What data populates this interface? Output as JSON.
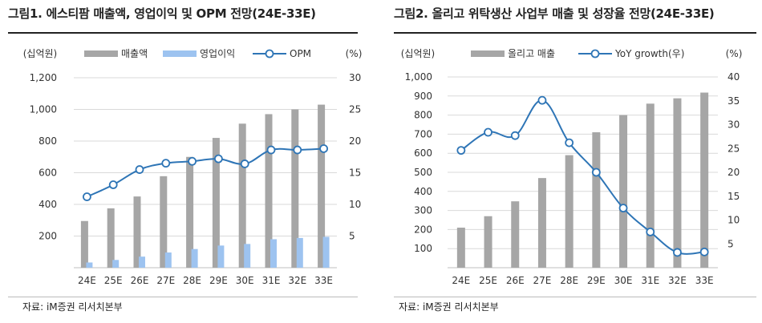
{
  "figures": [
    {
      "title": "그림1. 에스티팜 매출액, 영업이익 및 OPM 전망(24E-33E)",
      "source": "자료: iM증권 리서치본부"
    },
    {
      "title": "그림2.  올리고 위탁생산 사업부 매출 및 성장율 전망(24E-33E)",
      "source": "자료: iM증권 리서치본부"
    }
  ],
  "colors": {
    "bar_gray": "#a6a6a6",
    "bar_blue": "#9dc3f0",
    "line_blue": "#2e75b6"
  },
  "chart_data": [
    {
      "type": "bar",
      "title": "",
      "left_unit": "(십억원)",
      "right_unit": "(%)",
      "categories": [
        "24E",
        "25E",
        "26E",
        "27E",
        "28E",
        "29E",
        "30E",
        "31E",
        "32E",
        "33E"
      ],
      "series": [
        {
          "name": "매출액",
          "type": "bar",
          "axis": "left",
          "values": [
            295,
            375,
            450,
            578,
            700,
            820,
            910,
            970,
            1000,
            1030
          ]
        },
        {
          "name": "영업이익",
          "type": "bar",
          "axis": "left",
          "values": [
            33,
            49,
            70,
            96,
            118,
            140,
            150,
            180,
            188,
            195
          ]
        },
        {
          "name": "OPM",
          "type": "line",
          "axis": "right",
          "values": [
            11.2,
            13.1,
            15.5,
            16.5,
            16.8,
            17.2,
            16.4,
            18.6,
            18.6,
            18.8
          ]
        }
      ],
      "ylim_left": [
        0,
        1200
      ],
      "yticks_left": [
        200,
        400,
        600,
        800,
        1000,
        1200
      ],
      "ytick_labels_left": [
        "200",
        "400",
        "600",
        "800",
        "1,000",
        "1,200"
      ],
      "ylim_right": [
        0,
        30
      ],
      "yticks_right": [
        5,
        10,
        15,
        20,
        25,
        30
      ],
      "ytick_labels_right": [
        "5",
        "10",
        "15",
        "20",
        "25",
        "30"
      ],
      "grid": true,
      "legend": "top"
    },
    {
      "type": "bar",
      "title": "",
      "left_unit": "(십억원)",
      "right_unit": "(%)",
      "categories": [
        "24E",
        "25E",
        "26E",
        "27E",
        "28E",
        "29E",
        "30E",
        "31E",
        "32E",
        "33E"
      ],
      "series": [
        {
          "name": "올리고 매출",
          "type": "bar",
          "axis": "left",
          "values": [
            210,
            270,
            348,
            470,
            590,
            710,
            800,
            860,
            888,
            918
          ]
        },
        {
          "name": "YoY growth(우)",
          "type": "line",
          "axis": "right",
          "values": [
            24.6,
            28.4,
            27.7,
            35.1,
            26.2,
            20.0,
            12.5,
            7.5,
            3.2,
            3.3
          ]
        }
      ],
      "ylim_left": [
        0,
        1000
      ],
      "yticks_left": [
        100,
        200,
        300,
        400,
        500,
        600,
        700,
        800,
        900,
        1000
      ],
      "ytick_labels_left": [
        "100",
        "200",
        "300",
        "400",
        "500",
        "600",
        "700",
        "800",
        "900",
        "1,000"
      ],
      "ylim_right": [
        0,
        40
      ],
      "yticks_right": [
        5,
        10,
        15,
        20,
        25,
        30,
        35,
        40
      ],
      "ytick_labels_right": [
        "5",
        "10",
        "15",
        "20",
        "25",
        "30",
        "35",
        "40"
      ],
      "grid": true,
      "legend": "top"
    }
  ]
}
